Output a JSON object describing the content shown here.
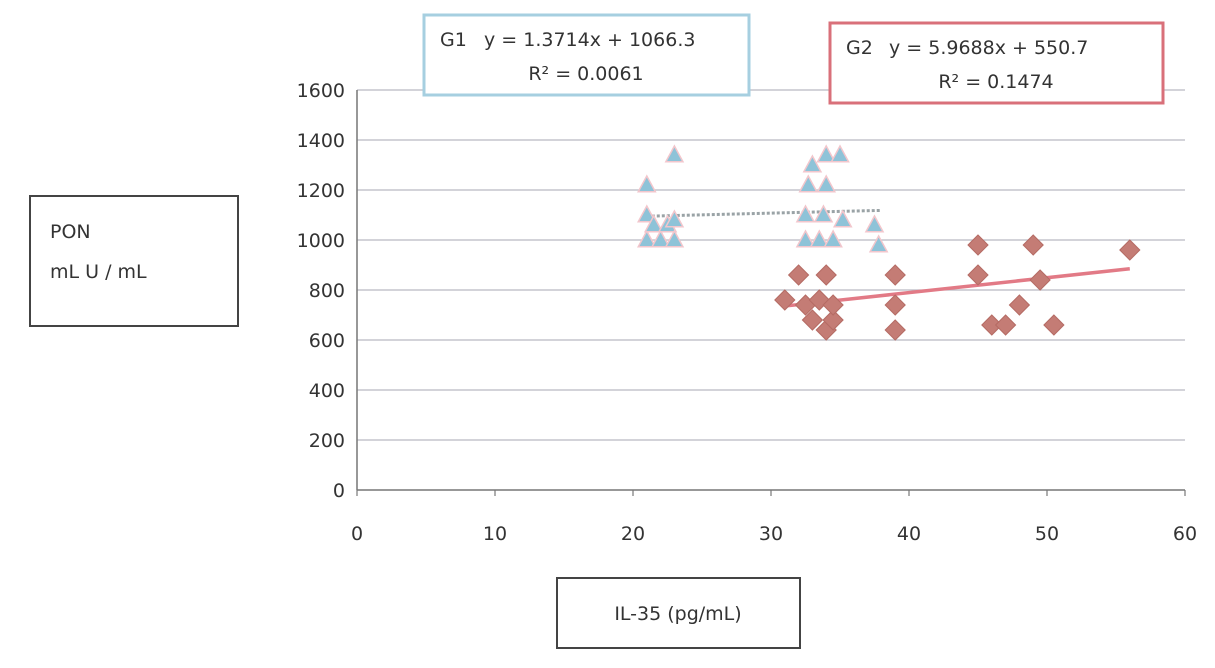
{
  "chart_data": {
    "type": "scatter",
    "xlabel": "IL-35 (pg/mL)",
    "ylabel_lines": [
      "PON",
      "mL U / mL"
    ],
    "xlim": [
      0,
      60
    ],
    "ylim": [
      0,
      1600
    ],
    "x_ticks": [
      0,
      10,
      20,
      30,
      40,
      50,
      60
    ],
    "y_ticks": [
      0,
      200,
      400,
      600,
      800,
      1000,
      1200,
      1400,
      1600
    ],
    "grid": true,
    "series": [
      {
        "name": "G1",
        "marker": "triangle",
        "color": "#8ec3d8",
        "points": [
          [
            21,
            1220
          ],
          [
            21,
            1100
          ],
          [
            21,
            1000
          ],
          [
            21.5,
            1060
          ],
          [
            22,
            1000
          ],
          [
            22.5,
            1060
          ],
          [
            23,
            1340
          ],
          [
            23,
            1080
          ],
          [
            23,
            1000
          ],
          [
            32.5,
            1100
          ],
          [
            32.5,
            1000
          ],
          [
            32.7,
            1220
          ],
          [
            33,
            1300
          ],
          [
            33.5,
            1000
          ],
          [
            33.8,
            1100
          ],
          [
            34,
            1220
          ],
          [
            34,
            1340
          ],
          [
            34.5,
            1000
          ],
          [
            35,
            1340
          ],
          [
            35.2,
            1080
          ],
          [
            37.5,
            1060
          ],
          [
            37.8,
            980
          ]
        ],
        "trendline": {
          "slope": 1.3714,
          "intercept": 1066.3,
          "x_range": [
            21,
            38
          ]
        },
        "annotation": {
          "label": "G1",
          "equation": "y = 1.3714x + 1066.3",
          "r2": "R² = 0.0061",
          "box_color": "#a6cfe0"
        }
      },
      {
        "name": "G2",
        "marker": "diamond",
        "color": "#c47c75",
        "points": [
          [
            31,
            760
          ],
          [
            32,
            860
          ],
          [
            32.5,
            740
          ],
          [
            33,
            680
          ],
          [
            33.5,
            760
          ],
          [
            34,
            860
          ],
          [
            34,
            640
          ],
          [
            34.5,
            680
          ],
          [
            34.5,
            740
          ],
          [
            39,
            860
          ],
          [
            39,
            740
          ],
          [
            39,
            640
          ],
          [
            45,
            980
          ],
          [
            45,
            860
          ],
          [
            46,
            660
          ],
          [
            47,
            660
          ],
          [
            48,
            740
          ],
          [
            49,
            980
          ],
          [
            49.5,
            840
          ],
          [
            50.5,
            660
          ],
          [
            56,
            960
          ]
        ],
        "trendline": {
          "slope": 5.9688,
          "intercept": 550.7,
          "x_range": [
            31,
            56
          ]
        },
        "annotation": {
          "label": "G2",
          "equation": "y = 5.9688x + 550.7",
          "r2": "R² = 0.1474",
          "box_color": "#d9707a"
        }
      }
    ]
  }
}
